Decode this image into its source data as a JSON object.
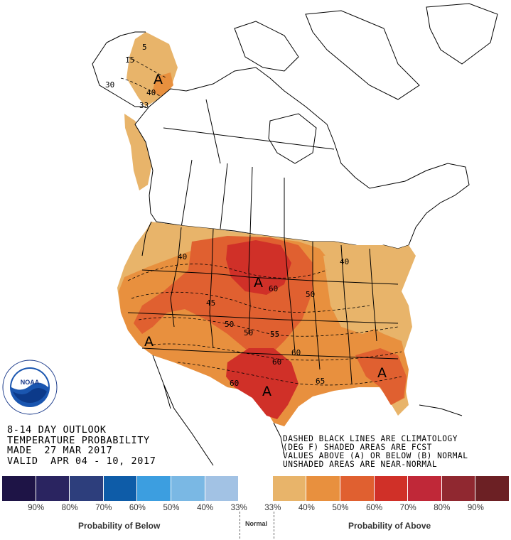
{
  "title": {
    "line1": "8-14 DAY OUTLOOK",
    "line2": "TEMPERATURE PROBABILITY",
    "line3": "MADE  27 MAR 2017",
    "line4": "VALID  APR 04 - 10, 2017"
  },
  "notes": {
    "line1": "DASHED BLACK LINES ARE CLIMATOLOGY",
    "line2": "(DEG F) SHADED AREAS ARE FCST",
    "line3": "VALUES ABOVE (A) OR BELOW (B) NORMAL",
    "line4": "UNSHADED AREAS ARE NEAR-NORMAL"
  },
  "logo": {
    "text": "NOAA",
    "ring_text": "NATIONAL OCEANIC AND ATMOSPHERIC ADMINISTRATION · U.S. DEPARTMENT OF COMMERCE"
  },
  "legend": {
    "colors": [
      "#1e1446",
      "#2a2460",
      "#2d3e7c",
      "#0e5ca8",
      "#3c9ee0",
      "#7ab8e4",
      "#a2c2e4",
      "#ffffff",
      "#e8b46a",
      "#e8903e",
      "#e06030",
      "#d03028",
      "#c02838",
      "#902830",
      "#6c2024"
    ],
    "labels": [
      "90%",
      "80%",
      "70%",
      "60%",
      "50%",
      "40%",
      "33%",
      "33%",
      "40%",
      "50%",
      "60%",
      "70%",
      "80%",
      "90%"
    ],
    "below_caption": "Probability of Below",
    "normal_caption": "Normal",
    "above_caption": "Probability of Above"
  },
  "map_labels": {
    "alaska_5": "5",
    "alaska_15": "15",
    "alaska_30": "30",
    "alaska_40": "40",
    "alaska_33": "33",
    "alaska_a": "A",
    "conus_40": "40",
    "conus_45": "45",
    "conus_50a": "50",
    "conus_50b": "50",
    "conus_50c": "50",
    "conus_55": "55",
    "conus_60a": "60",
    "conus_60b": "60",
    "conus_60c": "60",
    "conus_60d": "60",
    "conus_65": "65",
    "conus_40ne": "40",
    "a_plains": "A",
    "a_west": "A",
    "a_texas": "A",
    "a_southeast": "A"
  }
}
